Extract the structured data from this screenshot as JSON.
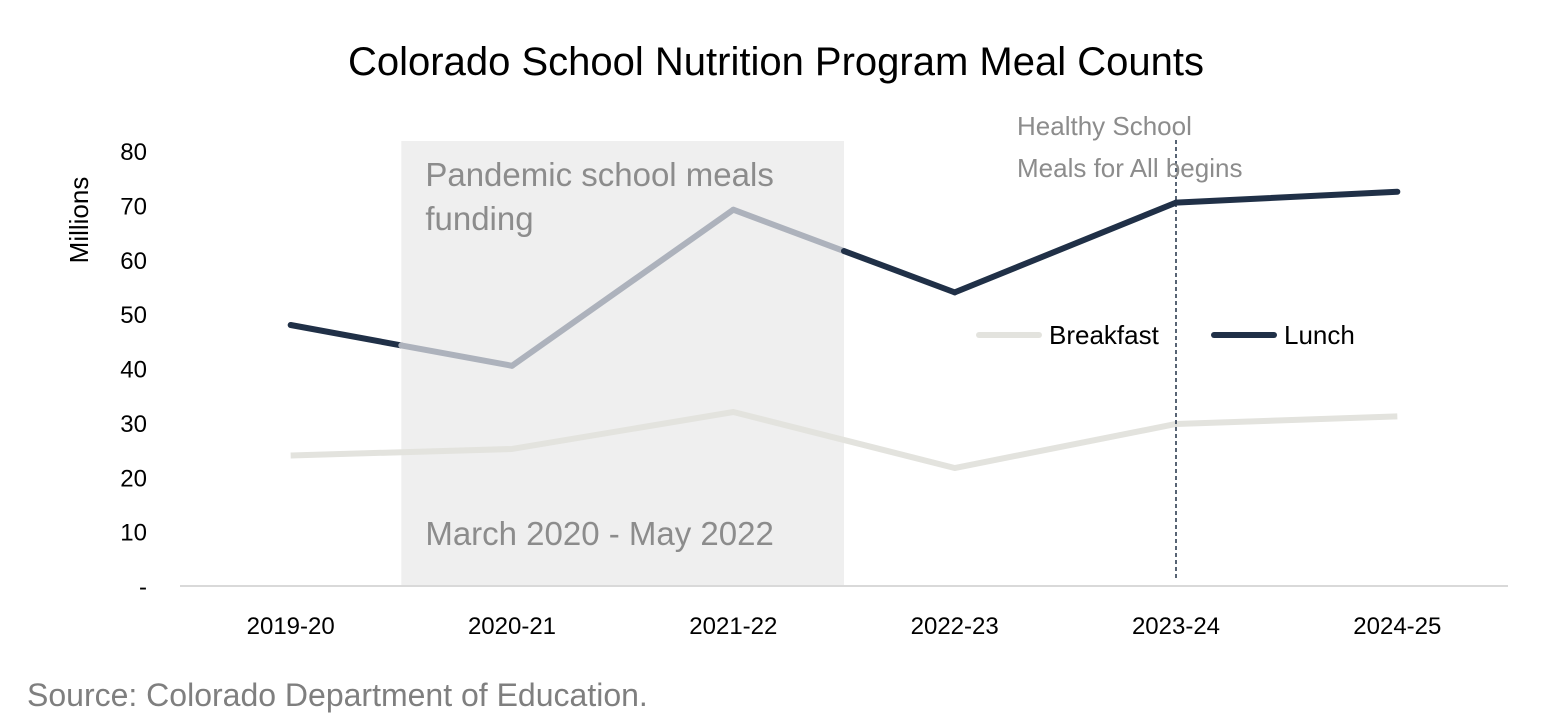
{
  "chart_data": {
    "type": "line",
    "title": "Colorado School Nutrition Program Meal Counts",
    "xlabel": "",
    "ylabel": "Millions",
    "categories": [
      "2019-20",
      "2020-21",
      "2021-22",
      "2022-23",
      "2023-24",
      "2024-25"
    ],
    "y_ticks": [
      "-",
      "10",
      "20",
      "30",
      "40",
      "50",
      "60",
      "70",
      "80"
    ],
    "ylim": [
      0,
      80
    ],
    "grid": false,
    "legend_position": "center-right",
    "series": [
      {
        "name": "Breakfast",
        "color": "#e3e3de",
        "values": [
          24.0,
          25.2,
          32.0,
          21.7,
          29.8,
          31.2
        ]
      },
      {
        "name": "Lunch",
        "color": "#203047",
        "highlight_color": "#adb2bc",
        "values": [
          48.0,
          40.5,
          69.2,
          54.0,
          70.5,
          72.5
        ]
      }
    ],
    "shaded_region": {
      "start_category": "2020-21",
      "end_category": "2022-23",
      "label": "Pandemic school meals funding",
      "label_lines": [
        "Pandemic school meals",
        "funding"
      ],
      "sublabel": "March 2020 - May 2022",
      "color": "#efefef"
    },
    "event_marker": {
      "category": "2023-24",
      "label": "Healthy School Meals for All begins",
      "label_lines": [
        "Healthy School",
        "Meals for All begins"
      ]
    }
  },
  "source": "Source: Colorado Department of Education."
}
